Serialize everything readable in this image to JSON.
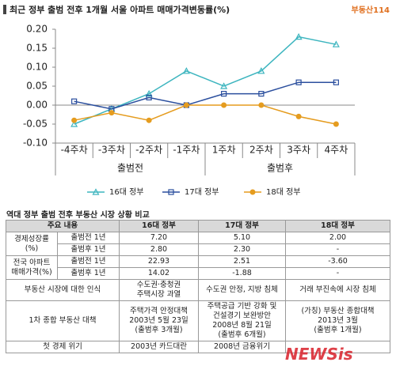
{
  "chart_data": {
    "type": "line",
    "title": "최근 정부 출범 전후 1개월 서울 아파트 매매가격변동률(%)",
    "logo": "부동산114",
    "categories": [
      "-4주차",
      "-3주차",
      "-2주차",
      "-1주차",
      "1주차",
      "2주차",
      "3주차",
      "4주차"
    ],
    "groups": [
      {
        "label": "출범전",
        "span": 4
      },
      {
        "label": "출범후",
        "span": 4
      }
    ],
    "series": [
      {
        "name": "16대 정부",
        "color": "#3db5bf",
        "marker": "triangle",
        "values": [
          -0.05,
          -0.01,
          0.03,
          0.09,
          0.05,
          0.09,
          0.18,
          0.16
        ]
      },
      {
        "name": "17대 정부",
        "color": "#2b4f9e",
        "marker": "square",
        "values": [
          0.01,
          -0.01,
          0.02,
          0.0,
          0.03,
          0.03,
          0.06,
          0.06
        ]
      },
      {
        "name": "18대 정부",
        "color": "#e59c1f",
        "marker": "circle",
        "values": [
          -0.04,
          -0.02,
          -0.04,
          0.0,
          0.0,
          0.0,
          -0.03,
          -0.05
        ]
      }
    ],
    "ylim": [
      -0.1,
      0.2
    ],
    "yticks": [
      {
        "value": -0.1,
        "label": "-0.10"
      },
      {
        "value": -0.05,
        "label": "-0.05"
      },
      {
        "value": 0,
        "label": "0.00"
      },
      {
        "value": 0.05,
        "label": "0.05"
      },
      {
        "value": 0.1,
        "label": "0.10"
      },
      {
        "value": 0.15,
        "label": "0.15"
      },
      {
        "value": 0.2,
        "label": "0.20"
      }
    ],
    "grid": false
  },
  "table": {
    "title": "역대 정부 출범 전후 부동산 시장 상황 비교",
    "header": [
      "주요 내용",
      "16대 정부",
      "17대 정부",
      "18대 정부"
    ],
    "growth": {
      "label": [
        "경제성장률",
        "(%)"
      ],
      "rows": [
        [
          "출범전 1년",
          "7.20",
          "5.10",
          "2.00"
        ],
        [
          "출범후 1년",
          "2.80",
          "2.30",
          "-"
        ]
      ]
    },
    "price": {
      "label": [
        "전국 아파트",
        "매매가격(%)"
      ],
      "rows": [
        [
          "출범전 1년",
          "22.93",
          "2.51",
          "-3.60"
        ],
        [
          "출범후 1년",
          "14.02",
          "-1.88",
          "-"
        ]
      ]
    },
    "perception": [
      "부동산 시장에 대한 인식",
      [
        "수도권·충청권",
        "주택시장 과열"
      ],
      [
        "수도권 안정, 지방 침체"
      ],
      [
        "거래 부진속에 시장 침체"
      ]
    ],
    "policy": [
      "1차 종합 부동산 대책",
      [
        "주택가격 안정대책",
        "2003년 5월 23일",
        "(출범후 3개월)"
      ],
      [
        "주택공급 기반 강화 및",
        "건설경기 보완방안",
        "2008년 8월 21일",
        "(출범후 6개월)"
      ],
      [
        "(가칭) 부동산 종합대책",
        "2013년 3월",
        "(출범후 1개월)"
      ]
    ],
    "crisis": [
      "첫 경제 위기",
      "2003년 카드대란",
      "2008년 금융위기"
    ]
  },
  "watermark": "NEWSis"
}
